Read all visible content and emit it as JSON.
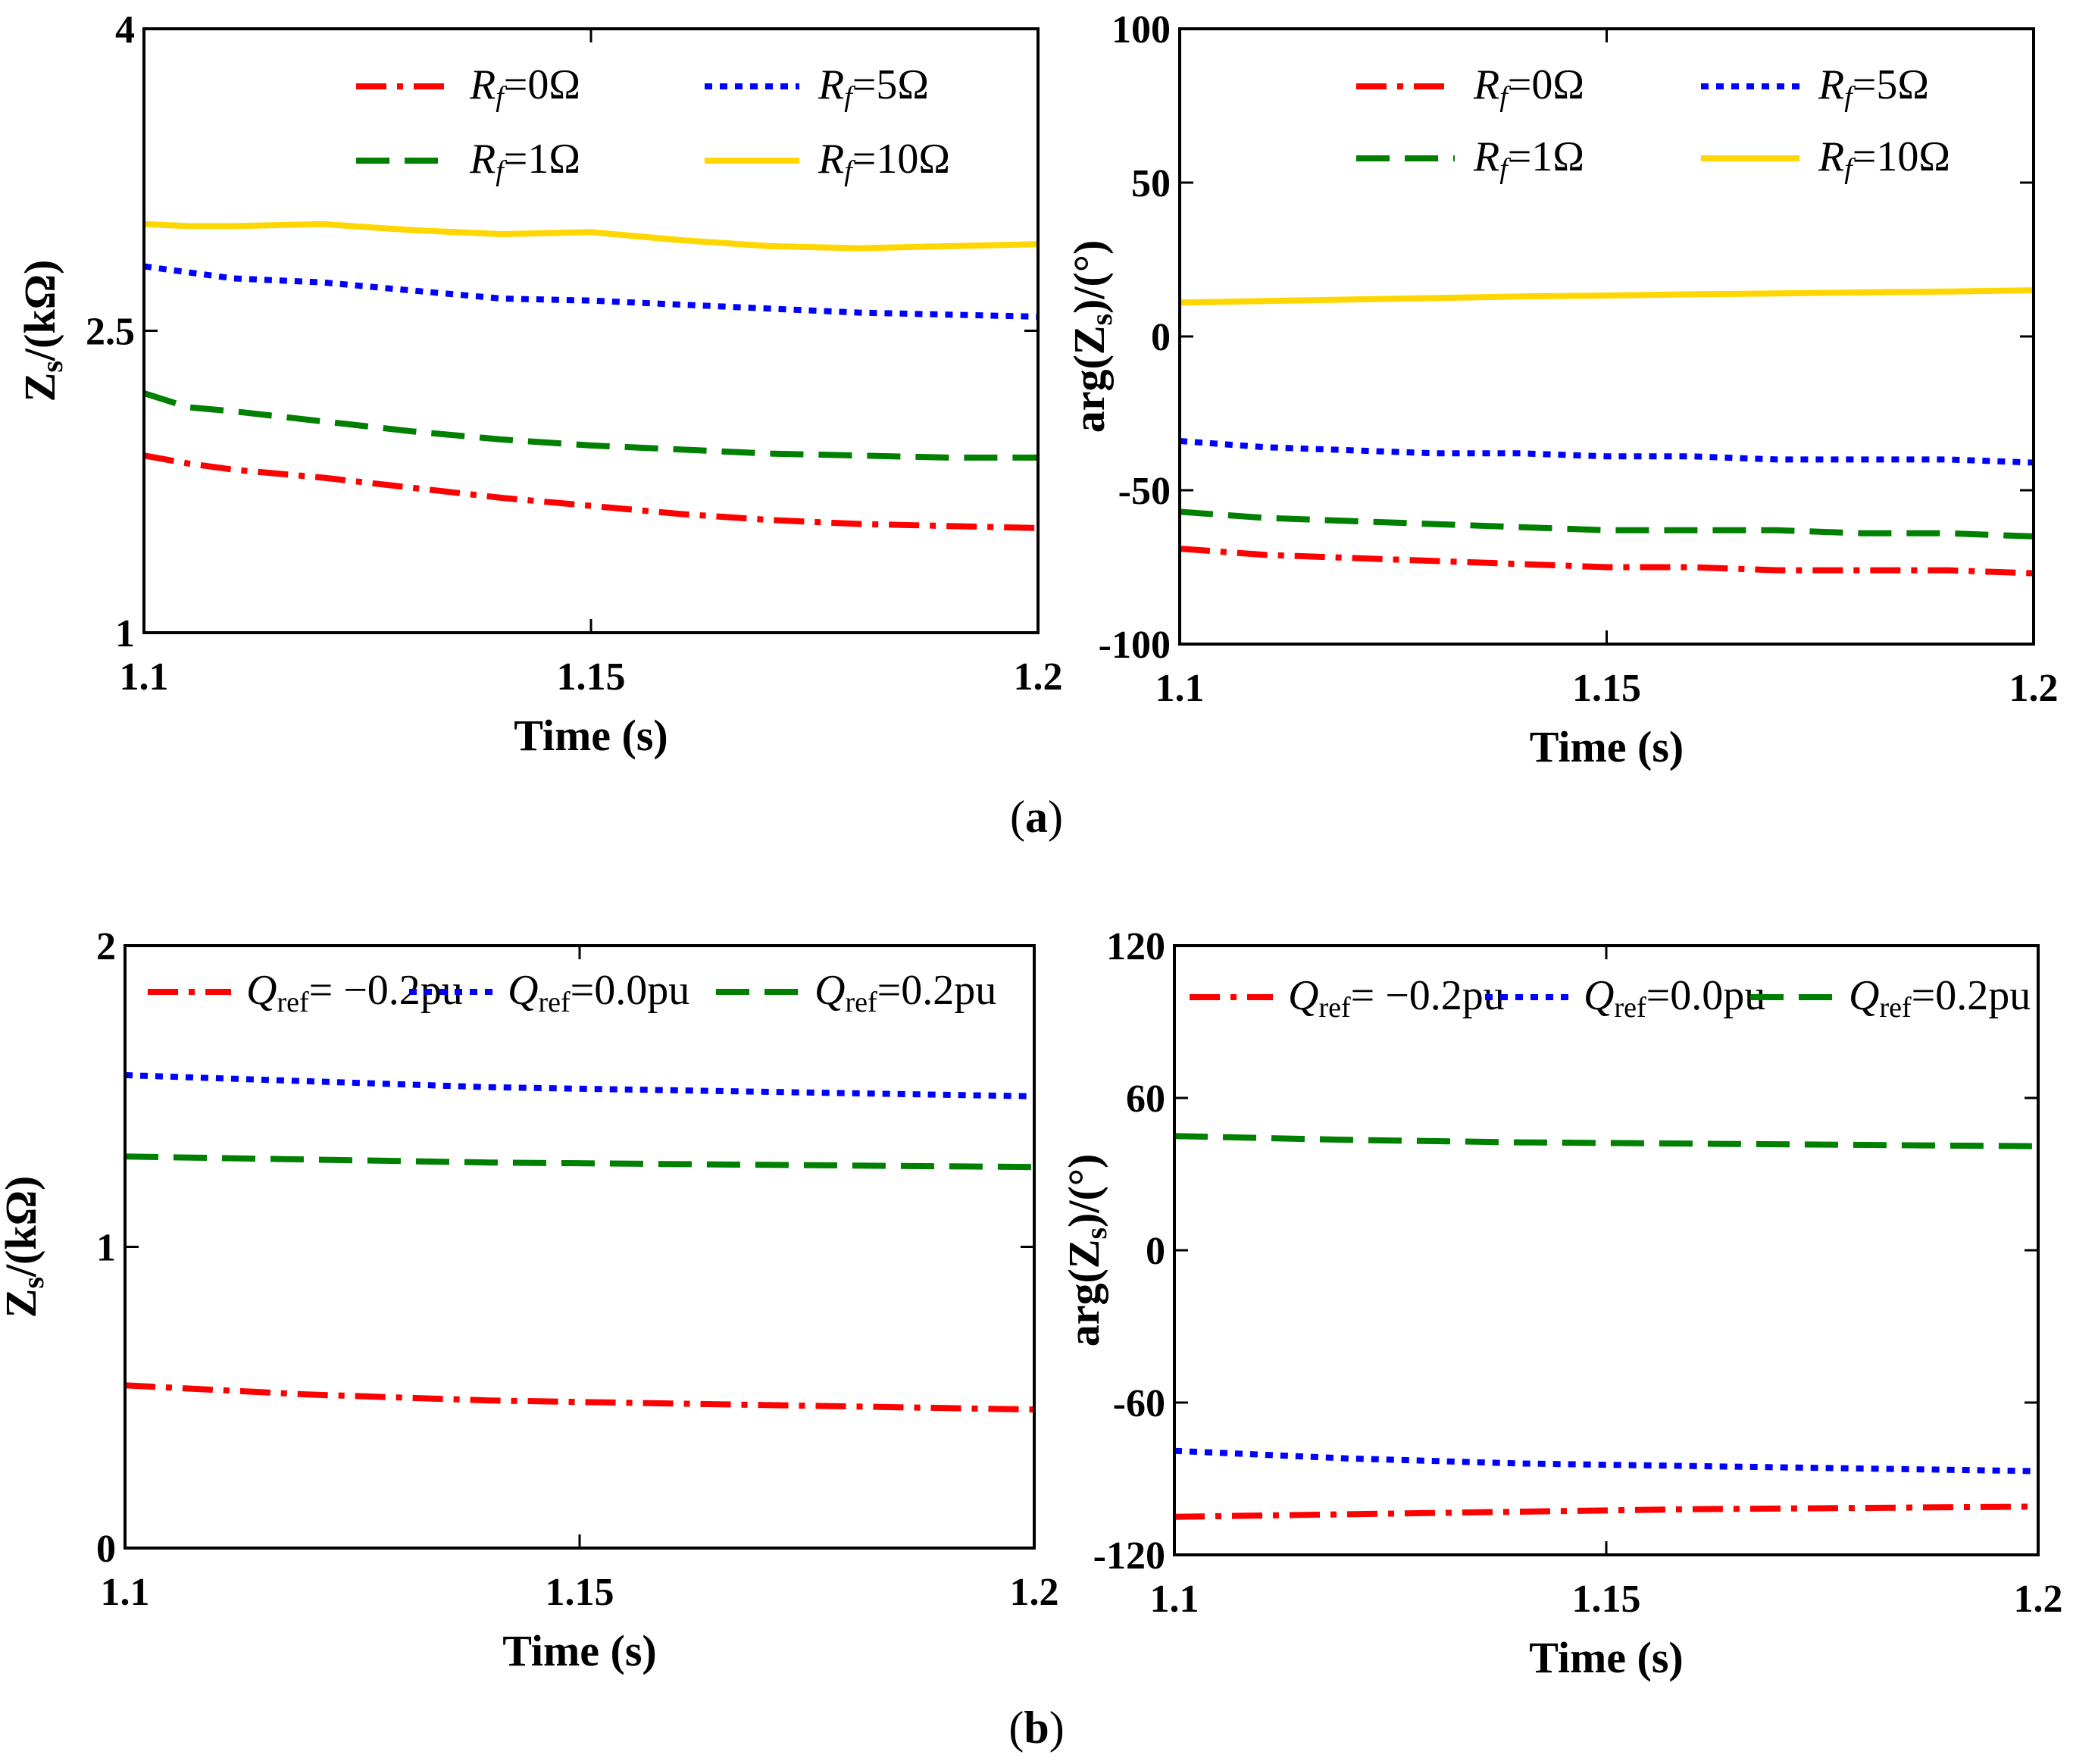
{
  "chart_data": [
    {
      "type": "line",
      "panel": "a-left",
      "xlabel": "Time (s)",
      "ylabel": "Zs/(kΩ)",
      "xlim": [
        1.1,
        1.2
      ],
      "ylim": [
        1,
        4
      ],
      "xticks": [
        1.1,
        1.15,
        1.2
      ],
      "xtick_labels": [
        "1.1",
        "1.15",
        "1.2"
      ],
      "yticks": [
        1,
        2.5,
        4
      ],
      "ytick_labels": [
        "1",
        "2.5",
        "4"
      ],
      "x": [
        1.1,
        1.105,
        1.11,
        1.12,
        1.13,
        1.14,
        1.15,
        1.16,
        1.17,
        1.18,
        1.19,
        1.2
      ],
      "series": [
        {
          "name": "Rf=0Ω",
          "label_sym": "R",
          "label_sub": "f",
          "label_rest": "=0Ω",
          "color": "#ff0000",
          "dash": "dashdot",
          "values": [
            1.88,
            1.84,
            1.81,
            1.77,
            1.72,
            1.67,
            1.63,
            1.59,
            1.56,
            1.54,
            1.53,
            1.52
          ]
        },
        {
          "name": "Rf=1Ω",
          "label_sym": "R",
          "label_sub": "f",
          "label_rest": "=1Ω",
          "color": "#008000",
          "dash": "dash",
          "values": [
            2.19,
            2.12,
            2.1,
            2.05,
            2.0,
            1.96,
            1.93,
            1.91,
            1.89,
            1.88,
            1.87,
            1.87
          ]
        },
        {
          "name": "Rf=5Ω",
          "label_sym": "R",
          "label_sub": "f",
          "label_rest": "=5Ω",
          "color": "#0000ff",
          "dash": "dot",
          "values": [
            2.82,
            2.79,
            2.76,
            2.74,
            2.7,
            2.66,
            2.65,
            2.63,
            2.61,
            2.59,
            2.58,
            2.57
          ]
        },
        {
          "name": "Rf=10Ω",
          "label_sym": "R",
          "label_sub": "f",
          "label_rest": "=10Ω",
          "color": "#ffd700",
          "dash": "solid",
          "values": [
            3.03,
            3.02,
            3.02,
            3.03,
            3.0,
            2.98,
            2.99,
            2.95,
            2.92,
            2.91,
            2.92,
            2.93
          ]
        }
      ],
      "legend": {
        "placement": "top",
        "columns": 2
      }
    },
    {
      "type": "line",
      "panel": "a-right",
      "xlabel": "Time (s)",
      "ylabel": "arg(Zs)/(°)",
      "xlim": [
        1.1,
        1.2
      ],
      "ylim": [
        -100,
        100
      ],
      "xticks": [
        1.1,
        1.15,
        1.2
      ],
      "xtick_labels": [
        "1.1",
        "1.15",
        "1.2"
      ],
      "yticks": [
        -100,
        -50,
        0,
        50,
        100
      ],
      "ytick_labels": [
        "-100",
        "-50",
        "0",
        "50",
        "100"
      ],
      "x": [
        1.1,
        1.11,
        1.12,
        1.13,
        1.14,
        1.15,
        1.16,
        1.17,
        1.18,
        1.19,
        1.2
      ],
      "series": [
        {
          "name": "Rf=0Ω",
          "label_sym": "R",
          "label_sub": "f",
          "label_rest": "=0Ω",
          "color": "#ff0000",
          "dash": "dashdot",
          "values": [
            -69,
            -71,
            -72,
            -73,
            -74,
            -75,
            -75,
            -76,
            -76,
            -76,
            -77
          ]
        },
        {
          "name": "Rf=1Ω",
          "label_sym": "R",
          "label_sub": "f",
          "label_rest": "=1Ω",
          "color": "#008000",
          "dash": "dash",
          "values": [
            -57,
            -59,
            -60,
            -61,
            -62,
            -63,
            -63,
            -63,
            -64,
            -64,
            -65
          ]
        },
        {
          "name": "Rf=5Ω",
          "label_sym": "R",
          "label_sub": "f",
          "label_rest": "=5Ω",
          "color": "#0000ff",
          "dash": "dot",
          "values": [
            -34,
            -36,
            -37,
            -38,
            -38,
            -39,
            -39,
            -40,
            -40,
            -40,
            -41
          ]
        },
        {
          "name": "Rf=10Ω",
          "label_sym": "R",
          "label_sub": "f",
          "label_rest": "=10Ω",
          "color": "#ffd700",
          "dash": "solid",
          "values": [
            11,
            11.5,
            12,
            12.5,
            13,
            13.3,
            13.7,
            14,
            14.3,
            14.6,
            15
          ]
        }
      ],
      "legend": {
        "placement": "top",
        "columns": 2
      }
    },
    {
      "type": "line",
      "panel": "b-left",
      "xlabel": "Time (s)",
      "ylabel": "Zs/(kΩ)",
      "xlim": [
        1.1,
        1.2
      ],
      "ylim": [
        0,
        2
      ],
      "xticks": [
        1.1,
        1.15,
        1.2
      ],
      "xtick_labels": [
        "1.1",
        "1.15",
        "1.2"
      ],
      "yticks": [
        0,
        1,
        2
      ],
      "ytick_labels": [
        "0",
        "1",
        "2"
      ],
      "x": [
        1.1,
        1.12,
        1.14,
        1.16,
        1.18,
        1.2
      ],
      "series": [
        {
          "name": "Qref= −0.2pu",
          "label_sym": "Q",
          "label_sub": "ref",
          "label_rest": "= −0.2pu",
          "color": "#ff0000",
          "dash": "dashdot",
          "values": [
            0.54,
            0.51,
            0.49,
            0.48,
            0.47,
            0.46
          ]
        },
        {
          "name": "Qref=0.0pu",
          "label_sym": "Q",
          "label_sub": "ref",
          "label_rest": "=0.0pu",
          "color": "#0000ff",
          "dash": "dot",
          "values": [
            1.57,
            1.55,
            1.53,
            1.52,
            1.51,
            1.5
          ]
        },
        {
          "name": "Qref=0.2pu",
          "label_sym": "Q",
          "label_sub": "ref",
          "label_rest": "=0.2pu",
          "color": "#008000",
          "dash": "dash",
          "values": [
            1.3,
            1.29,
            1.28,
            1.275,
            1.27,
            1.265
          ]
        }
      ],
      "legend": {
        "placement": "top",
        "columns": 3
      }
    },
    {
      "type": "line",
      "panel": "b-right",
      "xlabel": "Time (s)",
      "ylabel": "arg(Zs)/(°)",
      "xlim": [
        1.1,
        1.2
      ],
      "ylim": [
        -120,
        120
      ],
      "xticks": [
        1.1,
        1.15,
        1.2
      ],
      "xtick_labels": [
        "1.1",
        "1.15",
        "1.2"
      ],
      "yticks": [
        -120,
        -60,
        0,
        60,
        120
      ],
      "ytick_labels": [
        "-120",
        "-60",
        "0",
        "60",
        "120"
      ],
      "x": [
        1.1,
        1.12,
        1.14,
        1.16,
        1.18,
        1.2
      ],
      "series": [
        {
          "name": "Qref= −0.2pu",
          "label_sym": "Q",
          "label_sub": "ref",
          "label_rest": "= −0.2pu",
          "color": "#ff0000",
          "dash": "dashdot",
          "values": [
            -105,
            -104,
            -103,
            -102,
            -101.5,
            -101
          ]
        },
        {
          "name": "Qref=0.0pu",
          "label_sym": "Q",
          "label_sub": "ref",
          "label_rest": "=0.0pu",
          "color": "#0000ff",
          "dash": "dot",
          "values": [
            -79,
            -82,
            -84,
            -85,
            -86,
            -87
          ]
        },
        {
          "name": "Qref=0.2pu",
          "label_sym": "Q",
          "label_sub": "ref",
          "label_rest": "=0.2pu",
          "color": "#008000",
          "dash": "dash",
          "values": [
            45,
            43.5,
            42.5,
            42,
            41.5,
            41
          ]
        }
      ],
      "legend": {
        "placement": "top",
        "columns": 3
      }
    }
  ],
  "subfigure_labels": [
    "(a)",
    "(b)"
  ]
}
